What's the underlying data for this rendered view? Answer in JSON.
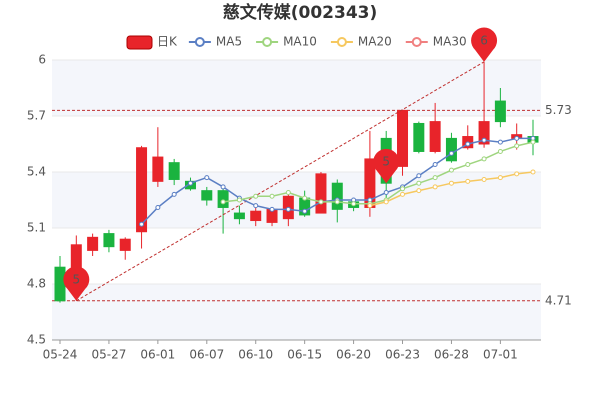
{
  "chart_data": {
    "type": "candlestick",
    "title": "慈文传媒(002343)",
    "categories": [
      "05-24",
      null,
      null,
      "05-27",
      null,
      null,
      "06-01",
      null,
      null,
      "06-07",
      null,
      null,
      "06-10",
      null,
      null,
      "06-15",
      null,
      null,
      "06-20",
      null,
      null,
      "06-23",
      null,
      null,
      "06-28",
      null,
      null,
      "07-01",
      null,
      null
    ],
    "candles": {
      "name": "日K",
      "up_color": "#e8242a",
      "down_color": "#1ab33f",
      "open": [
        4.89,
        4.77,
        4.98,
        5.07,
        4.98,
        5.08,
        5.35,
        5.45,
        5.35,
        5.3,
        5.3,
        5.18,
        5.14,
        5.13,
        5.15,
        5.26,
        5.18,
        5.34,
        5.24,
        5.21,
        5.58,
        5.43,
        5.66,
        5.51,
        5.58,
        5.53,
        5.55,
        5.78,
        5.58,
        5.59
      ],
      "close": [
        4.71,
        5.01,
        5.05,
        5.0,
        5.04,
        5.53,
        5.48,
        5.36,
        5.31,
        5.25,
        5.21,
        5.15,
        5.19,
        5.2,
        5.27,
        5.17,
        5.39,
        5.2,
        5.21,
        5.47,
        5.34,
        5.73,
        5.51,
        5.67,
        5.46,
        5.59,
        5.67,
        5.67,
        5.6,
        5.56
      ],
      "high": [
        4.95,
        5.06,
        5.07,
        5.09,
        5.05,
        5.54,
        5.64,
        5.47,
        5.37,
        5.32,
        5.32,
        5.22,
        5.21,
        5.21,
        5.28,
        5.3,
        5.4,
        5.36,
        5.26,
        5.62,
        5.62,
        5.73,
        5.67,
        5.77,
        5.61,
        5.65,
        5.99,
        5.85,
        5.66,
        5.68
      ],
      "low": [
        4.7,
        4.71,
        4.95,
        4.97,
        4.93,
        4.99,
        5.32,
        5.33,
        5.3,
        5.22,
        5.07,
        5.12,
        5.11,
        5.11,
        5.11,
        5.16,
        5.18,
        5.13,
        5.19,
        5.16,
        5.25,
        5.38,
        5.5,
        5.5,
        5.45,
        5.52,
        5.53,
        5.64,
        5.52,
        5.49
      ]
    },
    "series": [
      {
        "name": "MA5",
        "color": "#5b7fc4",
        "values": [
          null,
          null,
          null,
          null,
          null,
          5.12,
          5.21,
          5.28,
          5.34,
          5.37,
          5.32,
          5.26,
          5.22,
          5.2,
          5.2,
          5.19,
          5.24,
          5.25,
          5.25,
          5.25,
          5.29,
          5.32,
          5.38,
          5.44,
          5.5,
          5.55,
          5.57,
          5.56,
          5.58,
          5.58
        ]
      },
      {
        "name": "MA10",
        "color": "#9fd57f",
        "values": [
          null,
          null,
          null,
          null,
          null,
          null,
          null,
          null,
          null,
          null,
          5.24,
          5.25,
          5.27,
          5.27,
          5.29,
          5.26,
          5.24,
          5.24,
          5.23,
          5.23,
          5.25,
          5.31,
          5.34,
          5.37,
          5.41,
          5.44,
          5.47,
          5.51,
          5.54,
          5.56
        ]
      },
      {
        "name": "MA20",
        "color": "#f6c85f",
        "values": [
          null,
          null,
          null,
          null,
          null,
          null,
          null,
          null,
          null,
          null,
          null,
          null,
          null,
          null,
          null,
          null,
          null,
          null,
          null,
          5.22,
          5.24,
          5.28,
          5.3,
          5.32,
          5.34,
          5.35,
          5.36,
          5.37,
          5.39,
          5.4
        ]
      },
      {
        "name": "MA30",
        "color": "#f08080",
        "values": [
          null,
          null,
          null,
          null,
          null,
          null,
          null,
          null,
          null,
          null,
          null,
          null,
          null,
          null,
          null,
          null,
          null,
          null,
          null,
          null,
          null,
          null,
          null,
          null,
          null,
          null,
          null,
          null,
          null,
          null
        ]
      }
    ],
    "hlines": [
      5.73,
      4.71
    ],
    "markers": [
      {
        "index": 1,
        "at": "low",
        "text": "5"
      },
      {
        "index": 20,
        "at": "close",
        "text": "5"
      },
      {
        "index": 26,
        "at": "high",
        "text": "6"
      }
    ],
    "ylim": [
      4.5,
      6
    ],
    "yticks": [
      4.5,
      4.8,
      5.1,
      5.4,
      5.7,
      6
    ],
    "grid": true
  }
}
